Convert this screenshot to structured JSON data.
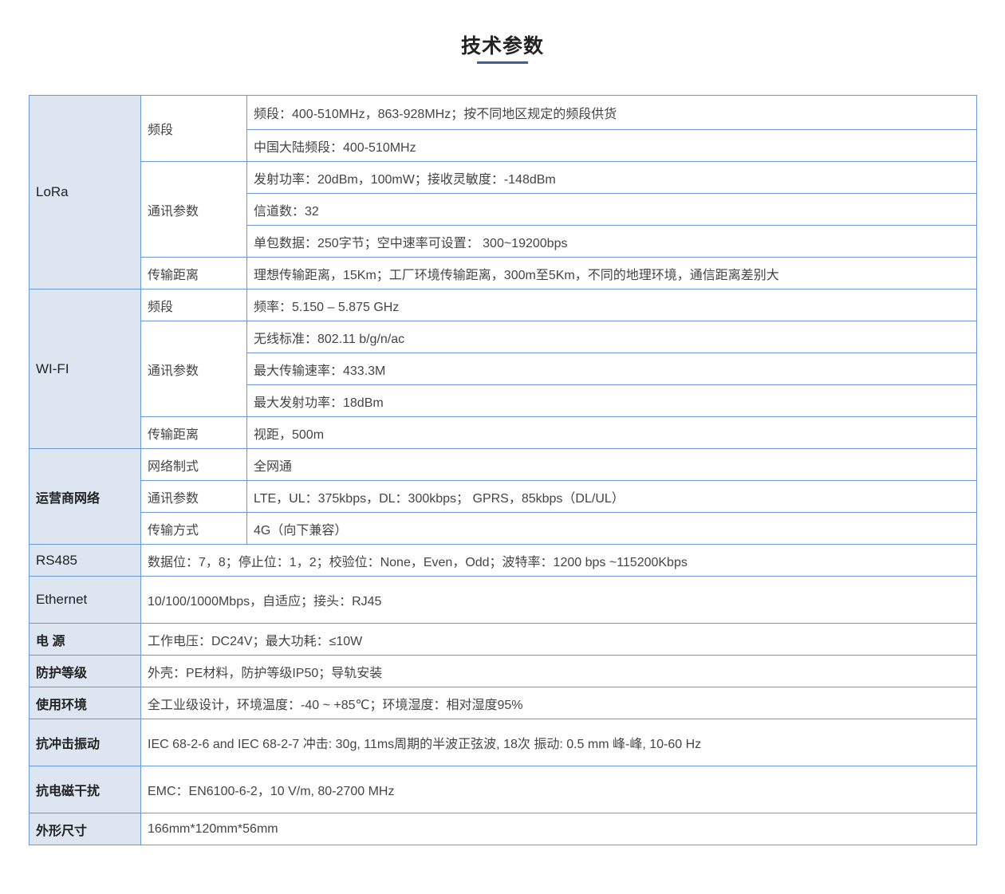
{
  "title": "技术参数",
  "lora": {
    "category": "LoRa",
    "band_label": "频段",
    "band": [
      "频段：400-510MHz，863-928MHz；按不同地区规定的频段供货",
      "中国大陆频段：400-510MHz"
    ],
    "comm_label": "通讯参数",
    "comm": [
      "发射功率：20dBm，100mW；接收灵敏度：-148dBm",
      "信道数：32",
      "单包数据：250字节；空中速率可设置： 300~19200bps"
    ],
    "dist_label": "传输距离",
    "dist": "理想传输距离，15Km；工厂环境传输距离，300m至5Km，不同的地理环境，通信距离差别大"
  },
  "wifi": {
    "category": "WI-FI",
    "band_label": "频段",
    "band": "频率：5.150 – 5.875 GHz",
    "comm_label": "通讯参数",
    "comm": [
      "无线标准：802.11 b/g/n/ac",
      "最大传输速率：433.3M",
      "最大发射功率：18dBm"
    ],
    "dist_label": "传输距离",
    "dist": "视距，500m"
  },
  "cellular": {
    "category": "运营商网络",
    "mode_label": "网络制式",
    "mode": "全网通",
    "comm_label": "通讯参数",
    "comm": "LTE，UL：375kbps，DL：300kbps； GPRS，85kbps（DL/UL）",
    "trans_label": "传输方式",
    "trans": "4G（向下兼容）"
  },
  "rows": [
    {
      "label": "RS485",
      "value": "数据位：7，8；停止位：1，2；校验位：None，Even，Odd；波特率：1200 bps ~115200Kbps"
    },
    {
      "label": "Ethernet",
      "value": "10/100/1000Mbps，自适应；接头：RJ45"
    },
    {
      "label": "电 源",
      "value": "工作电压：DC24V；最大功耗：≤10W"
    },
    {
      "label": "防护等级",
      "value": "外壳：PE材料，防护等级IP50；导轨安装"
    },
    {
      "label": "使用环境",
      "value": "全工业级设计，环境温度：-40 ~ +85℃；环境湿度：相对湿度95%"
    },
    {
      "label": "抗冲击振动",
      "value": "IEC 68-2-6 and IEC 68-2-7 冲击: 30g, 11ms周期的半波正弦波, 18次 振动: 0.5 mm 峰-峰, 10-60 Hz"
    },
    {
      "label": "抗电磁干扰",
      "value": "EMC：EN6100-6-2，10 V/m, 80-2700 MHz"
    },
    {
      "label": "外形尺寸",
      "value": "166mm*120mm*56mm"
    }
  ]
}
